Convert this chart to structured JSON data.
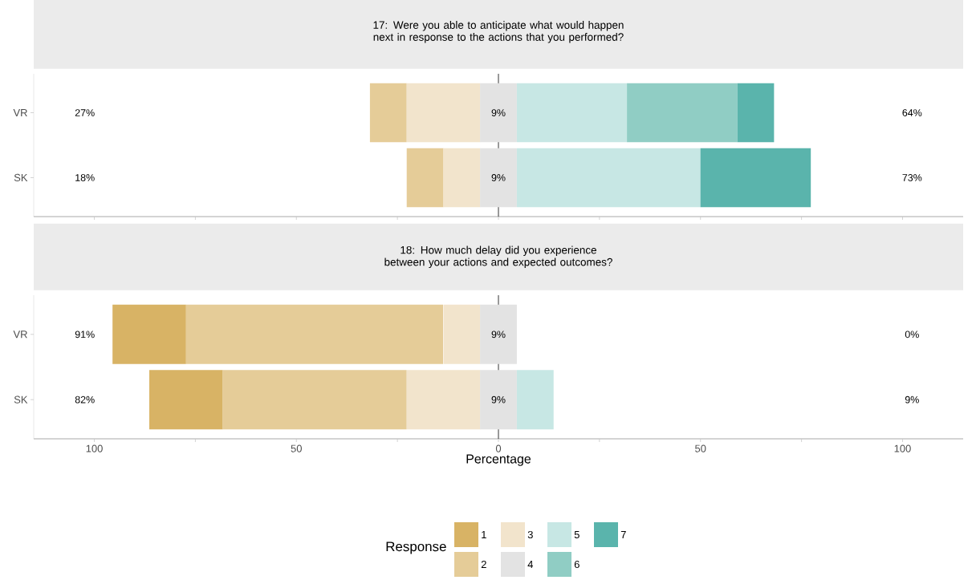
{
  "chart_data": [
    {
      "type": "bar",
      "orientation": "horizontal",
      "title": "17: Were you able to anticipate what would happen next in response to the actions that you performed?",
      "categories": [
        "VR",
        "SK"
      ],
      "series": [
        {
          "color": "#E5CC98",
          "base": [
            -31.8,
            -22.7
          ],
          "values": [
            9.1,
            9.1
          ]
        },
        {
          "color": "#F2E4CC",
          "base": [
            -22.7,
            -13.6
          ],
          "values": [
            18.2,
            9.1
          ]
        },
        {
          "color": "#E3E3E3",
          "base": [
            -4.55,
            -4.55
          ],
          "values": [
            9.1,
            9.1
          ],
          "value_labels": [
            "9%",
            "9%"
          ]
        },
        {
          "color": "#C7E7E4",
          "base": [
            4.55,
            4.55
          ],
          "values": [
            27.3,
            45.5
          ]
        },
        {
          "color": "#90CDC4",
          "base": [
            31.8,
            null
          ],
          "values": [
            27.3,
            0
          ]
        },
        {
          "color": "#5AB4AC",
          "base": [
            59.1,
            50
          ],
          "values": [
            9.1,
            27.3
          ]
        }
      ],
      "xlim": [
        -115,
        115
      ],
      "xticks": [
        {
          "value": -100,
          "label": null
        },
        {
          "value": -75,
          "label": null
        },
        {
          "value": -50,
          "label": null
        },
        {
          "value": -25,
          "label": null
        },
        {
          "value": 0,
          "label": null
        },
        {
          "value": 25,
          "label": null
        },
        {
          "value": 50,
          "label": null
        },
        {
          "value": 75,
          "label": null
        },
        {
          "value": 100,
          "label": null
        }
      ],
      "tick_labels": "y",
      "ref_lines": [
        {
          "axis": "x",
          "value": 0,
          "color": "#000000"
        }
      ],
      "annotations": [
        "27%",
        "64%",
        "18%",
        "73%"
      ]
    },
    {
      "type": "bar",
      "orientation": "horizontal",
      "title": "18: How much delay did you experience between your actions and expected outcomes?",
      "categories": [
        "VR",
        "SK"
      ],
      "series": [
        {
          "name": "1",
          "color": "#D8B365",
          "base": [
            -95.5,
            -86.4
          ],
          "values": [
            18.2,
            18.2
          ]
        },
        {
          "name": "2",
          "color": "#E5CC98",
          "base": [
            -77.3,
            -68.2
          ],
          "values": [
            63.6,
            45.5
          ]
        },
        {
          "name": "3",
          "color": "#F2E4CC",
          "base": [
            -13.6,
            -22.7
          ],
          "values": [
            9.1,
            18.2
          ]
        },
        {
          "name": "4",
          "color": "#E3E3E3",
          "base": [
            -4.55,
            -4.55
          ],
          "values": [
            9.1,
            9.1
          ],
          "value_labels": [
            "9%",
            "9%"
          ]
        },
        {
          "name": "5",
          "color": "#C7E7E4",
          "base": [
            null,
            4.55
          ],
          "values": [
            0,
            9.1
          ]
        },
        {
          "name": "6",
          "color": "#90CDC4",
          "values": [
            0,
            0
          ]
        },
        {
          "name": "7",
          "color": "#5AB4AC",
          "values": [
            0,
            0
          ]
        }
      ],
      "xlim": [
        -115,
        115
      ],
      "xticks": [
        {
          "value": -100,
          "label": "100"
        },
        {
          "value": -75,
          "label": null
        },
        {
          "value": -50,
          "label": "50"
        },
        {
          "value": -25,
          "label": null
        },
        0,
        {
          "value": 25,
          "label": null
        },
        50,
        {
          "value": 75,
          "label": null
        },
        100
      ],
      "xlabel": "Percentage",
      "legend": "bottom",
      "legend_title": "Response",
      "ref_lines": [
        {
          "axis": "x",
          "value": 0,
          "color": "#000000"
        }
      ],
      "annotations": [
        "91%",
        "0%",
        "82%",
        "9%"
      ]
    }
  ]
}
